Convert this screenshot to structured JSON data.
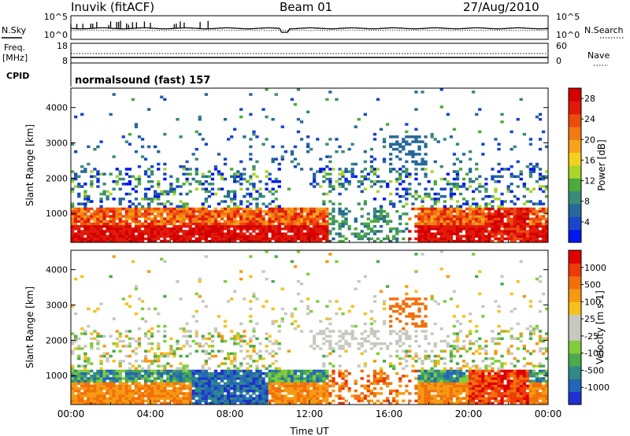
{
  "header": {
    "station": "Inuvik (fitACF)",
    "beam": "Beam 01",
    "date": "27/Aug/2010"
  },
  "panel_labels": {
    "n_sky": "N.Sky",
    "n_search": "N.Search",
    "freq": "Freq.",
    "freq_unit": "[MHz]",
    "nave": "Nave",
    "cpid": "CPID",
    "cpid_value": "normalsound (fast) 157"
  },
  "noise_axis": {
    "left_ticks": [
      "10^5",
      "10^0"
    ],
    "right_ticks": [
      "10^5",
      "10^0"
    ]
  },
  "freq_axis": {
    "left_ticks": [
      "18",
      "8"
    ],
    "right_ticks": [
      "60",
      "0"
    ]
  },
  "chart_data": [
    {
      "type": "heatmap",
      "name": "power",
      "xlabel": "Time UT",
      "ylabel": "Slant Range [km]",
      "x_range_hours": [
        0,
        24
      ],
      "xticks": [
        "00:00",
        "04:00",
        "08:00",
        "12:00",
        "16:00",
        "20:00",
        "00:00"
      ],
      "ylim": [
        180,
        4550
      ],
      "yticks": [
        1000,
        2000,
        3000,
        4000
      ],
      "colorbar": {
        "label": "Power [dB]",
        "ticks": [
          4,
          8,
          12,
          16,
          20,
          24,
          28
        ],
        "colors": [
          "#0018ee",
          "#1846c8",
          "#27689a",
          "#3a8a78",
          "#4cab3c",
          "#a9d42a",
          "#f2d21e",
          "#f6a21a",
          "#f27a14",
          "#ec4b0e",
          "#e21a0a",
          "#d40000"
        ],
        "range": [
          0,
          30
        ]
      }
    },
    {
      "type": "heatmap",
      "name": "velocity",
      "xlabel": "Time UT",
      "ylabel": "Slant Range [km]",
      "x_range_hours": [
        0,
        24
      ],
      "xticks": [
        "00:00",
        "04:00",
        "08:00",
        "12:00",
        "16:00",
        "20:00",
        "00:00"
      ],
      "ylim": [
        180,
        4550
      ],
      "yticks": [
        1000,
        2000,
        3000,
        4000
      ],
      "colorbar": {
        "label": "Velocity [m s-1]",
        "ticks": [
          "1000",
          "500",
          "100",
          "25",
          "-25",
          "-100",
          "-500",
          "-1000"
        ],
        "colors": [
          "#2030d0",
          "#2266b8",
          "#2f8a86",
          "#4caa4a",
          "#7fcc3c",
          "#c8c8c0",
          "#c8c8c0",
          "#f5c21c",
          "#f59a12",
          "#f2700c",
          "#ec3a08",
          "#e00000"
        ]
      }
    }
  ]
}
